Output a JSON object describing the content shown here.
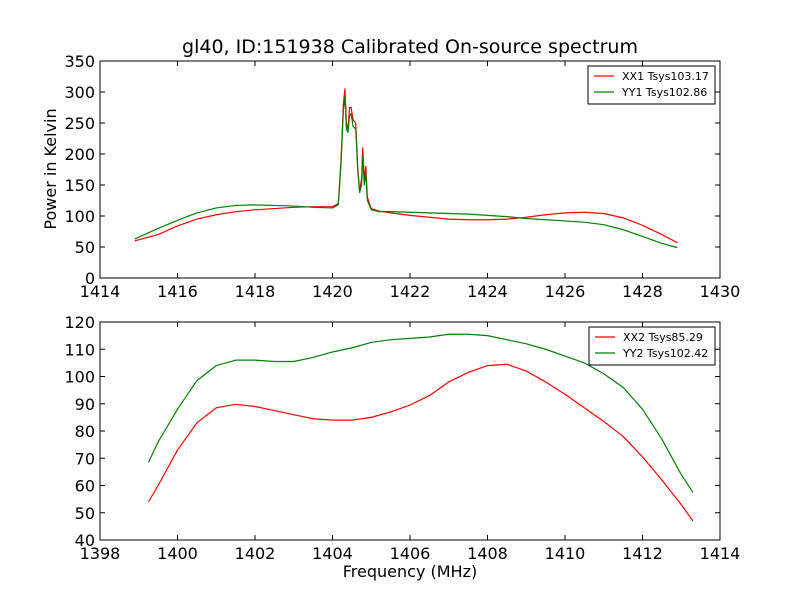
{
  "colors": {
    "xx": "#ff0000",
    "yy": "#008000"
  },
  "suptitle": "gl40, ID:151938 Calibrated On-source spectrum",
  "chart_data": [
    {
      "id": "top",
      "type": "line",
      "title": "gl40, ID:151938 Calibrated On-source spectrum",
      "xlabel": "",
      "ylabel": "Power in Kelvin",
      "xlim": [
        1414,
        1430
      ],
      "ylim": [
        0,
        350
      ],
      "xticks": [
        1414,
        1416,
        1418,
        1420,
        1422,
        1424,
        1426,
        1428,
        1430
      ],
      "yticks": [
        0,
        50,
        100,
        150,
        200,
        250,
        300,
        350
      ],
      "legend_position": "top-right",
      "series": [
        {
          "name": "XX1 Tsys103.17",
          "color": "#ff0000",
          "x": [
            1414.9,
            1415.5,
            1416,
            1416.5,
            1417,
            1417.5,
            1418,
            1418.5,
            1419,
            1419.5,
            1420,
            1420.15,
            1420.22,
            1420.28,
            1420.32,
            1420.36,
            1420.4,
            1420.44,
            1420.48,
            1420.53,
            1420.6,
            1420.65,
            1420.7,
            1420.75,
            1420.78,
            1420.82,
            1420.86,
            1420.9,
            1421,
            1421.2,
            1421.5,
            1422,
            1422.5,
            1423,
            1423.5,
            1424,
            1424.5,
            1425,
            1425.5,
            1426,
            1426.5,
            1427,
            1427.5,
            1428,
            1428.5,
            1428.9
          ],
          "y": [
            60,
            70,
            84,
            95,
            102,
            107,
            110,
            112,
            114,
            115,
            115,
            120,
            190,
            280,
            305,
            250,
            240,
            275,
            275,
            255,
            250,
            180,
            140,
            160,
            210,
            160,
            180,
            130,
            112,
            108,
            105,
            101,
            98,
            95,
            94,
            94,
            95,
            98,
            102,
            105,
            106,
            104,
            97,
            85,
            70,
            57
          ]
        },
        {
          "name": "YY1 Tsys102.86",
          "color": "#008000",
          "x": [
            1414.9,
            1415.5,
            1416,
            1416.5,
            1417,
            1417.5,
            1418,
            1418.5,
            1419,
            1419.5,
            1420,
            1420.15,
            1420.22,
            1420.28,
            1420.32,
            1420.36,
            1420.4,
            1420.44,
            1420.48,
            1420.53,
            1420.6,
            1420.65,
            1420.7,
            1420.75,
            1420.78,
            1420.82,
            1420.86,
            1420.9,
            1421,
            1421.2,
            1421.5,
            1422,
            1422.5,
            1423,
            1423.5,
            1424,
            1424.5,
            1425,
            1425.5,
            1426,
            1426.5,
            1427,
            1427.5,
            1428,
            1428.5,
            1428.9
          ],
          "y": [
            63,
            80,
            93,
            105,
            113,
            117,
            118,
            117,
            116,
            114,
            113,
            118,
            185,
            270,
            292,
            240,
            235,
            262,
            265,
            245,
            240,
            175,
            138,
            150,
            195,
            150,
            170,
            125,
            110,
            107,
            107,
            106,
            105,
            104,
            103,
            101,
            99,
            96,
            94,
            92,
            90,
            86,
            78,
            67,
            56,
            49
          ]
        }
      ]
    },
    {
      "id": "bottom",
      "type": "line",
      "title": "",
      "xlabel": "Frequency (MHz)",
      "ylabel": "",
      "xlim": [
        1398,
        1414
      ],
      "ylim": [
        40,
        120
      ],
      "xticks": [
        1398,
        1400,
        1402,
        1404,
        1406,
        1408,
        1410,
        1412,
        1414
      ],
      "yticks": [
        40,
        50,
        60,
        70,
        80,
        90,
        100,
        110,
        120
      ],
      "legend_position": "top-right",
      "series": [
        {
          "name": "XX2 Tsys85.29",
          "color": "#ff0000",
          "x": [
            1399.25,
            1399.5,
            1400,
            1400.5,
            1401,
            1401.5,
            1402,
            1402.5,
            1403,
            1403.5,
            1404,
            1404.5,
            1405,
            1405.5,
            1406,
            1406.5,
            1407,
            1407.5,
            1408,
            1408.5,
            1409,
            1409.5,
            1410,
            1410.5,
            1411,
            1411.5,
            1412,
            1412.5,
            1413,
            1413.3
          ],
          "y": [
            54,
            60,
            73,
            83,
            88.5,
            89.8,
            89,
            87.5,
            86,
            84.5,
            84,
            84,
            85,
            87,
            89.5,
            93,
            98,
            101.5,
            104,
            104.5,
            102,
            98,
            93.5,
            88.5,
            83.5,
            78,
            70.5,
            62,
            53,
            47
          ]
        },
        {
          "name": "YY2 Tsys102.42",
          "color": "#008000",
          "x": [
            1399.25,
            1399.5,
            1400,
            1400.5,
            1401,
            1401.5,
            1402,
            1402.5,
            1403,
            1403.5,
            1404,
            1404.5,
            1405,
            1405.5,
            1406,
            1406.5,
            1407,
            1407.5,
            1408,
            1408.5,
            1409,
            1409.5,
            1410,
            1410.5,
            1411,
            1411.5,
            1412,
            1412.5,
            1413,
            1413.3
          ],
          "y": [
            68.5,
            76,
            88,
            98.5,
            104,
            106,
            106,
            105.5,
            105.5,
            107,
            109,
            110.5,
            112.5,
            113.5,
            114,
            114.5,
            115.5,
            115.5,
            115,
            113.5,
            112,
            110,
            107.5,
            105,
            101,
            96,
            88,
            77,
            64,
            57.5
          ]
        }
      ]
    }
  ]
}
